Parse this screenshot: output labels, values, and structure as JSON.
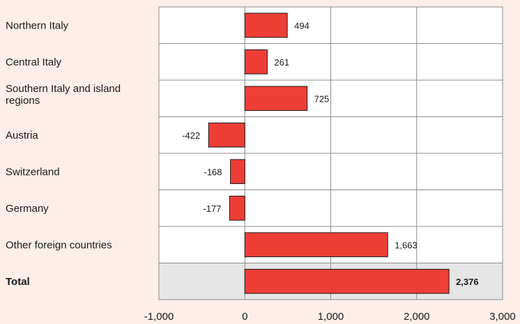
{
  "chart_data": {
    "type": "bar",
    "orientation": "horizontal",
    "categories": [
      "Northern Italy",
      "Central Italy",
      "Southern Italy and island regions",
      "Austria",
      "Switzerland",
      "Germany",
      "Other foreign countries",
      "Total"
    ],
    "values": [
      494,
      261,
      725,
      -422,
      -168,
      -177,
      1663,
      2376
    ],
    "value_labels": [
      "494",
      "261",
      "725",
      "-422",
      "-168",
      "-177",
      "1,663",
      "2,376"
    ],
    "highlighted_category": "Total",
    "xlim": [
      -1000,
      3000
    ],
    "xticks": [
      -1000,
      0,
      1000,
      2000,
      3000
    ],
    "xtick_labels": [
      "-1,000",
      "0",
      "1,000",
      "2,000",
      "3,000"
    ],
    "title": "",
    "xlabel": "",
    "ylabel": "",
    "grid": true,
    "colors": {
      "bar": "#ee3e36",
      "bar_stroke": "#1a1a1a",
      "background": "#fdeeea",
      "plot_background": "#ffffff",
      "highlight_row": "#e6e6e6",
      "grid": "#8c8c8c"
    }
  }
}
